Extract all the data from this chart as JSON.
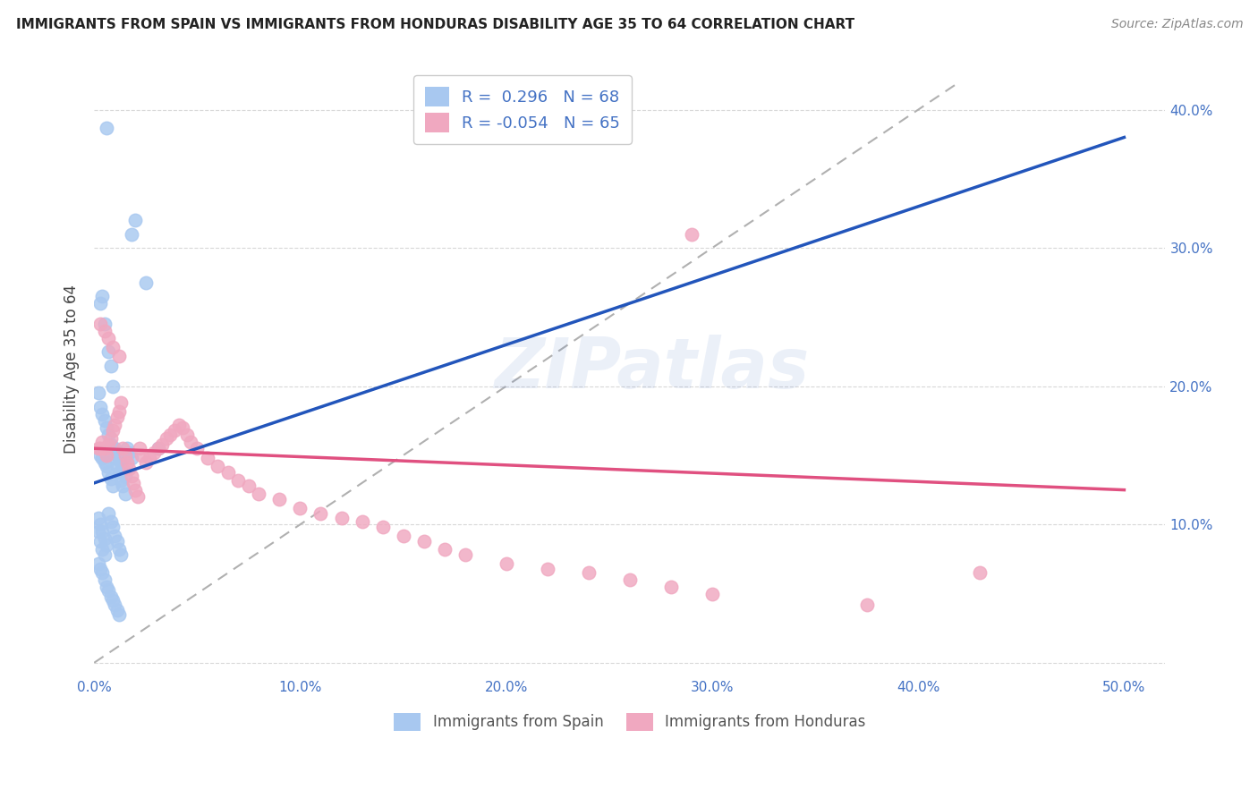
{
  "title": "IMMIGRANTS FROM SPAIN VS IMMIGRANTS FROM HONDURAS DISABILITY AGE 35 TO 64 CORRELATION CHART",
  "source": "Source: ZipAtlas.com",
  "ylabel": "Disability Age 35 to 64",
  "xlim": [
    0.0,
    0.52
  ],
  "ylim": [
    -0.01,
    0.435
  ],
  "xticks": [
    0.0,
    0.1,
    0.2,
    0.3,
    0.4,
    0.5
  ],
  "yticks": [
    0.0,
    0.1,
    0.2,
    0.3,
    0.4
  ],
  "xtick_labels": [
    "0.0%",
    "10.0%",
    "20.0%",
    "30.0%",
    "40.0%",
    "50.0%"
  ],
  "left_ytick_labels": [
    "",
    "",
    "",
    "",
    ""
  ],
  "right_ytick_labels": [
    "",
    "10.0%",
    "20.0%",
    "30.0%",
    "40.0%"
  ],
  "legend_labels": [
    "Immigrants from Spain",
    "Immigrants from Honduras"
  ],
  "color_spain": "#a8c8f0",
  "color_honduras": "#f0a8c0",
  "color_spain_line": "#2255bb",
  "color_honduras_line": "#e05080",
  "color_tick": "#4472c4",
  "background_color": "#ffffff",
  "watermark": "ZIPatlas",
  "watermark_color": "#4472c4",
  "title_color": "#222222",
  "source_color": "#888888",
  "ylabel_color": "#444444",
  "grid_color": "#d8d8d8",
  "legend_text_color": "#4472c4",
  "r_spain": "0.296",
  "n_spain": "68",
  "r_honduras": "-0.054",
  "n_honduras": "65",
  "spain_x": [
    0.006,
    0.02,
    0.018,
    0.025,
    0.004,
    0.003,
    0.005,
    0.007,
    0.008,
    0.009,
    0.002,
    0.003,
    0.004,
    0.005,
    0.006,
    0.007,
    0.008,
    0.009,
    0.01,
    0.011,
    0.012,
    0.013,
    0.014,
    0.015,
    0.01,
    0.011,
    0.012,
    0.013,
    0.014,
    0.015,
    0.016,
    0.017,
    0.018,
    0.003,
    0.004,
    0.005,
    0.006,
    0.007,
    0.008,
    0.009,
    0.002,
    0.003,
    0.004,
    0.005,
    0.002,
    0.003,
    0.004,
    0.005,
    0.006,
    0.007,
    0.008,
    0.009,
    0.01,
    0.011,
    0.012,
    0.002,
    0.003,
    0.004,
    0.005,
    0.006,
    0.031,
    0.007,
    0.008,
    0.009,
    0.01,
    0.011,
    0.012,
    0.013
  ],
  "spain_y": [
    0.387,
    0.32,
    0.31,
    0.275,
    0.265,
    0.26,
    0.245,
    0.225,
    0.215,
    0.2,
    0.195,
    0.185,
    0.18,
    0.175,
    0.17,
    0.165,
    0.158,
    0.152,
    0.148,
    0.142,
    0.138,
    0.132,
    0.128,
    0.122,
    0.155,
    0.152,
    0.148,
    0.145,
    0.14,
    0.135,
    0.155,
    0.152,
    0.148,
    0.15,
    0.148,
    0.145,
    0.142,
    0.138,
    0.133,
    0.128,
    0.095,
    0.088,
    0.082,
    0.078,
    0.072,
    0.068,
    0.065,
    0.06,
    0.055,
    0.052,
    0.048,
    0.045,
    0.042,
    0.038,
    0.035,
    0.105,
    0.1,
    0.095,
    0.09,
    0.085,
    0.155,
    0.108,
    0.102,
    0.098,
    0.092,
    0.088,
    0.082,
    0.078
  ],
  "honduras_x": [
    0.002,
    0.003,
    0.004,
    0.005,
    0.006,
    0.007,
    0.008,
    0.009,
    0.01,
    0.011,
    0.012,
    0.013,
    0.014,
    0.015,
    0.016,
    0.017,
    0.018,
    0.019,
    0.02,
    0.021,
    0.022,
    0.023,
    0.025,
    0.027,
    0.029,
    0.031,
    0.033,
    0.035,
    0.037,
    0.039,
    0.041,
    0.043,
    0.045,
    0.047,
    0.05,
    0.055,
    0.06,
    0.065,
    0.07,
    0.075,
    0.08,
    0.09,
    0.1,
    0.11,
    0.12,
    0.13,
    0.14,
    0.15,
    0.16,
    0.17,
    0.18,
    0.2,
    0.22,
    0.24,
    0.26,
    0.28,
    0.3,
    0.29,
    0.375,
    0.43,
    0.003,
    0.005,
    0.007,
    0.009,
    0.012
  ],
  "honduras_y": [
    0.155,
    0.155,
    0.16,
    0.155,
    0.15,
    0.158,
    0.162,
    0.168,
    0.172,
    0.178,
    0.182,
    0.188,
    0.155,
    0.15,
    0.145,
    0.14,
    0.135,
    0.13,
    0.125,
    0.12,
    0.155,
    0.15,
    0.145,
    0.148,
    0.152,
    0.155,
    0.158,
    0.162,
    0.165,
    0.168,
    0.172,
    0.17,
    0.165,
    0.16,
    0.155,
    0.148,
    0.142,
    0.138,
    0.132,
    0.128,
    0.122,
    0.118,
    0.112,
    0.108,
    0.105,
    0.102,
    0.098,
    0.092,
    0.088,
    0.082,
    0.078,
    0.072,
    0.068,
    0.065,
    0.06,
    0.055,
    0.05,
    0.31,
    0.042,
    0.065,
    0.245,
    0.24,
    0.235,
    0.228,
    0.222
  ]
}
